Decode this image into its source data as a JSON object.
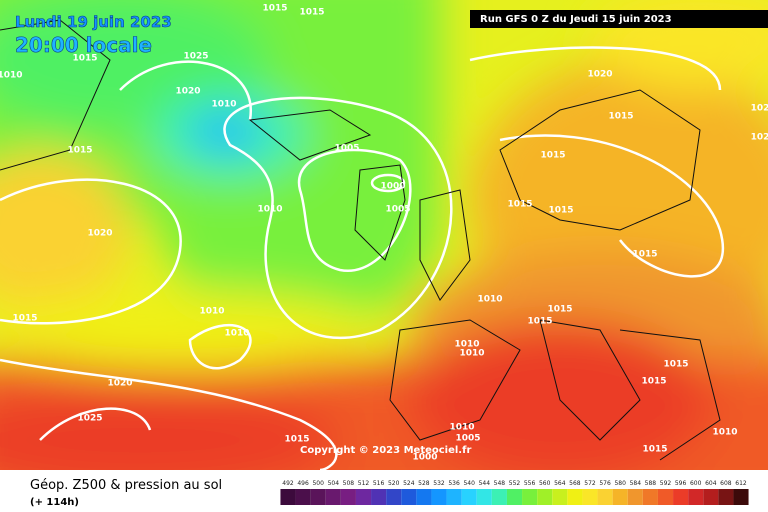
{
  "header": {
    "date": "Lundi 19 juin 2023",
    "time": "20:00 locale",
    "run": "Run GFS 0 Z du Jeudi 15 juin 2023"
  },
  "copyright": "Copyright © 2023 Meteociel.fr",
  "footer": {
    "title": "Géop. Z500 & pression au sol",
    "lead": "(+ 114h)"
  },
  "isobars": [
    "1015",
    "1015",
    "1010",
    "1015",
    "1025",
    "1020",
    "1010",
    "1015",
    "1005",
    "1000",
    "1010",
    "1005",
    "1020",
    "1020",
    "1015",
    "1015",
    "1015",
    "1015",
    "1015",
    "1010",
    "1015",
    "1015",
    "1010",
    "1010",
    "1015",
    "1010",
    "1010",
    "1015",
    "1015",
    "1020",
    "1025",
    "1010",
    "1005",
    "1010",
    "1015",
    "1015",
    "1000",
    "102",
    "102"
  ],
  "legend": {
    "labels": [
      "492",
      "496",
      "500",
      "504",
      "508",
      "512",
      "516",
      "520",
      "524",
      "528",
      "532",
      "536",
      "540",
      "544",
      "548",
      "552",
      "556",
      "560",
      "564",
      "568",
      "572",
      "576",
      "580",
      "584",
      "588",
      "592",
      "596",
      "600",
      "604",
      "608",
      "612"
    ],
    "colors": [
      "#3c0a3c",
      "#4b0f4b",
      "#5a145a",
      "#69196e",
      "#781e82",
      "#6e28a0",
      "#5032b4",
      "#3246c8",
      "#1e5adc",
      "#1478f0",
      "#1496ff",
      "#1eb4ff",
      "#28d2ff",
      "#32e6e6",
      "#3cf0b4",
      "#50f064",
      "#78f03c",
      "#a0f028",
      "#c8f01e",
      "#f0f014",
      "#fae628",
      "#fad232",
      "#f5b428",
      "#f0962d",
      "#f07828",
      "#f05a28",
      "#eb3c28",
      "#d22828",
      "#b41e1e",
      "#781414",
      "#3c0a0a"
    ]
  }
}
